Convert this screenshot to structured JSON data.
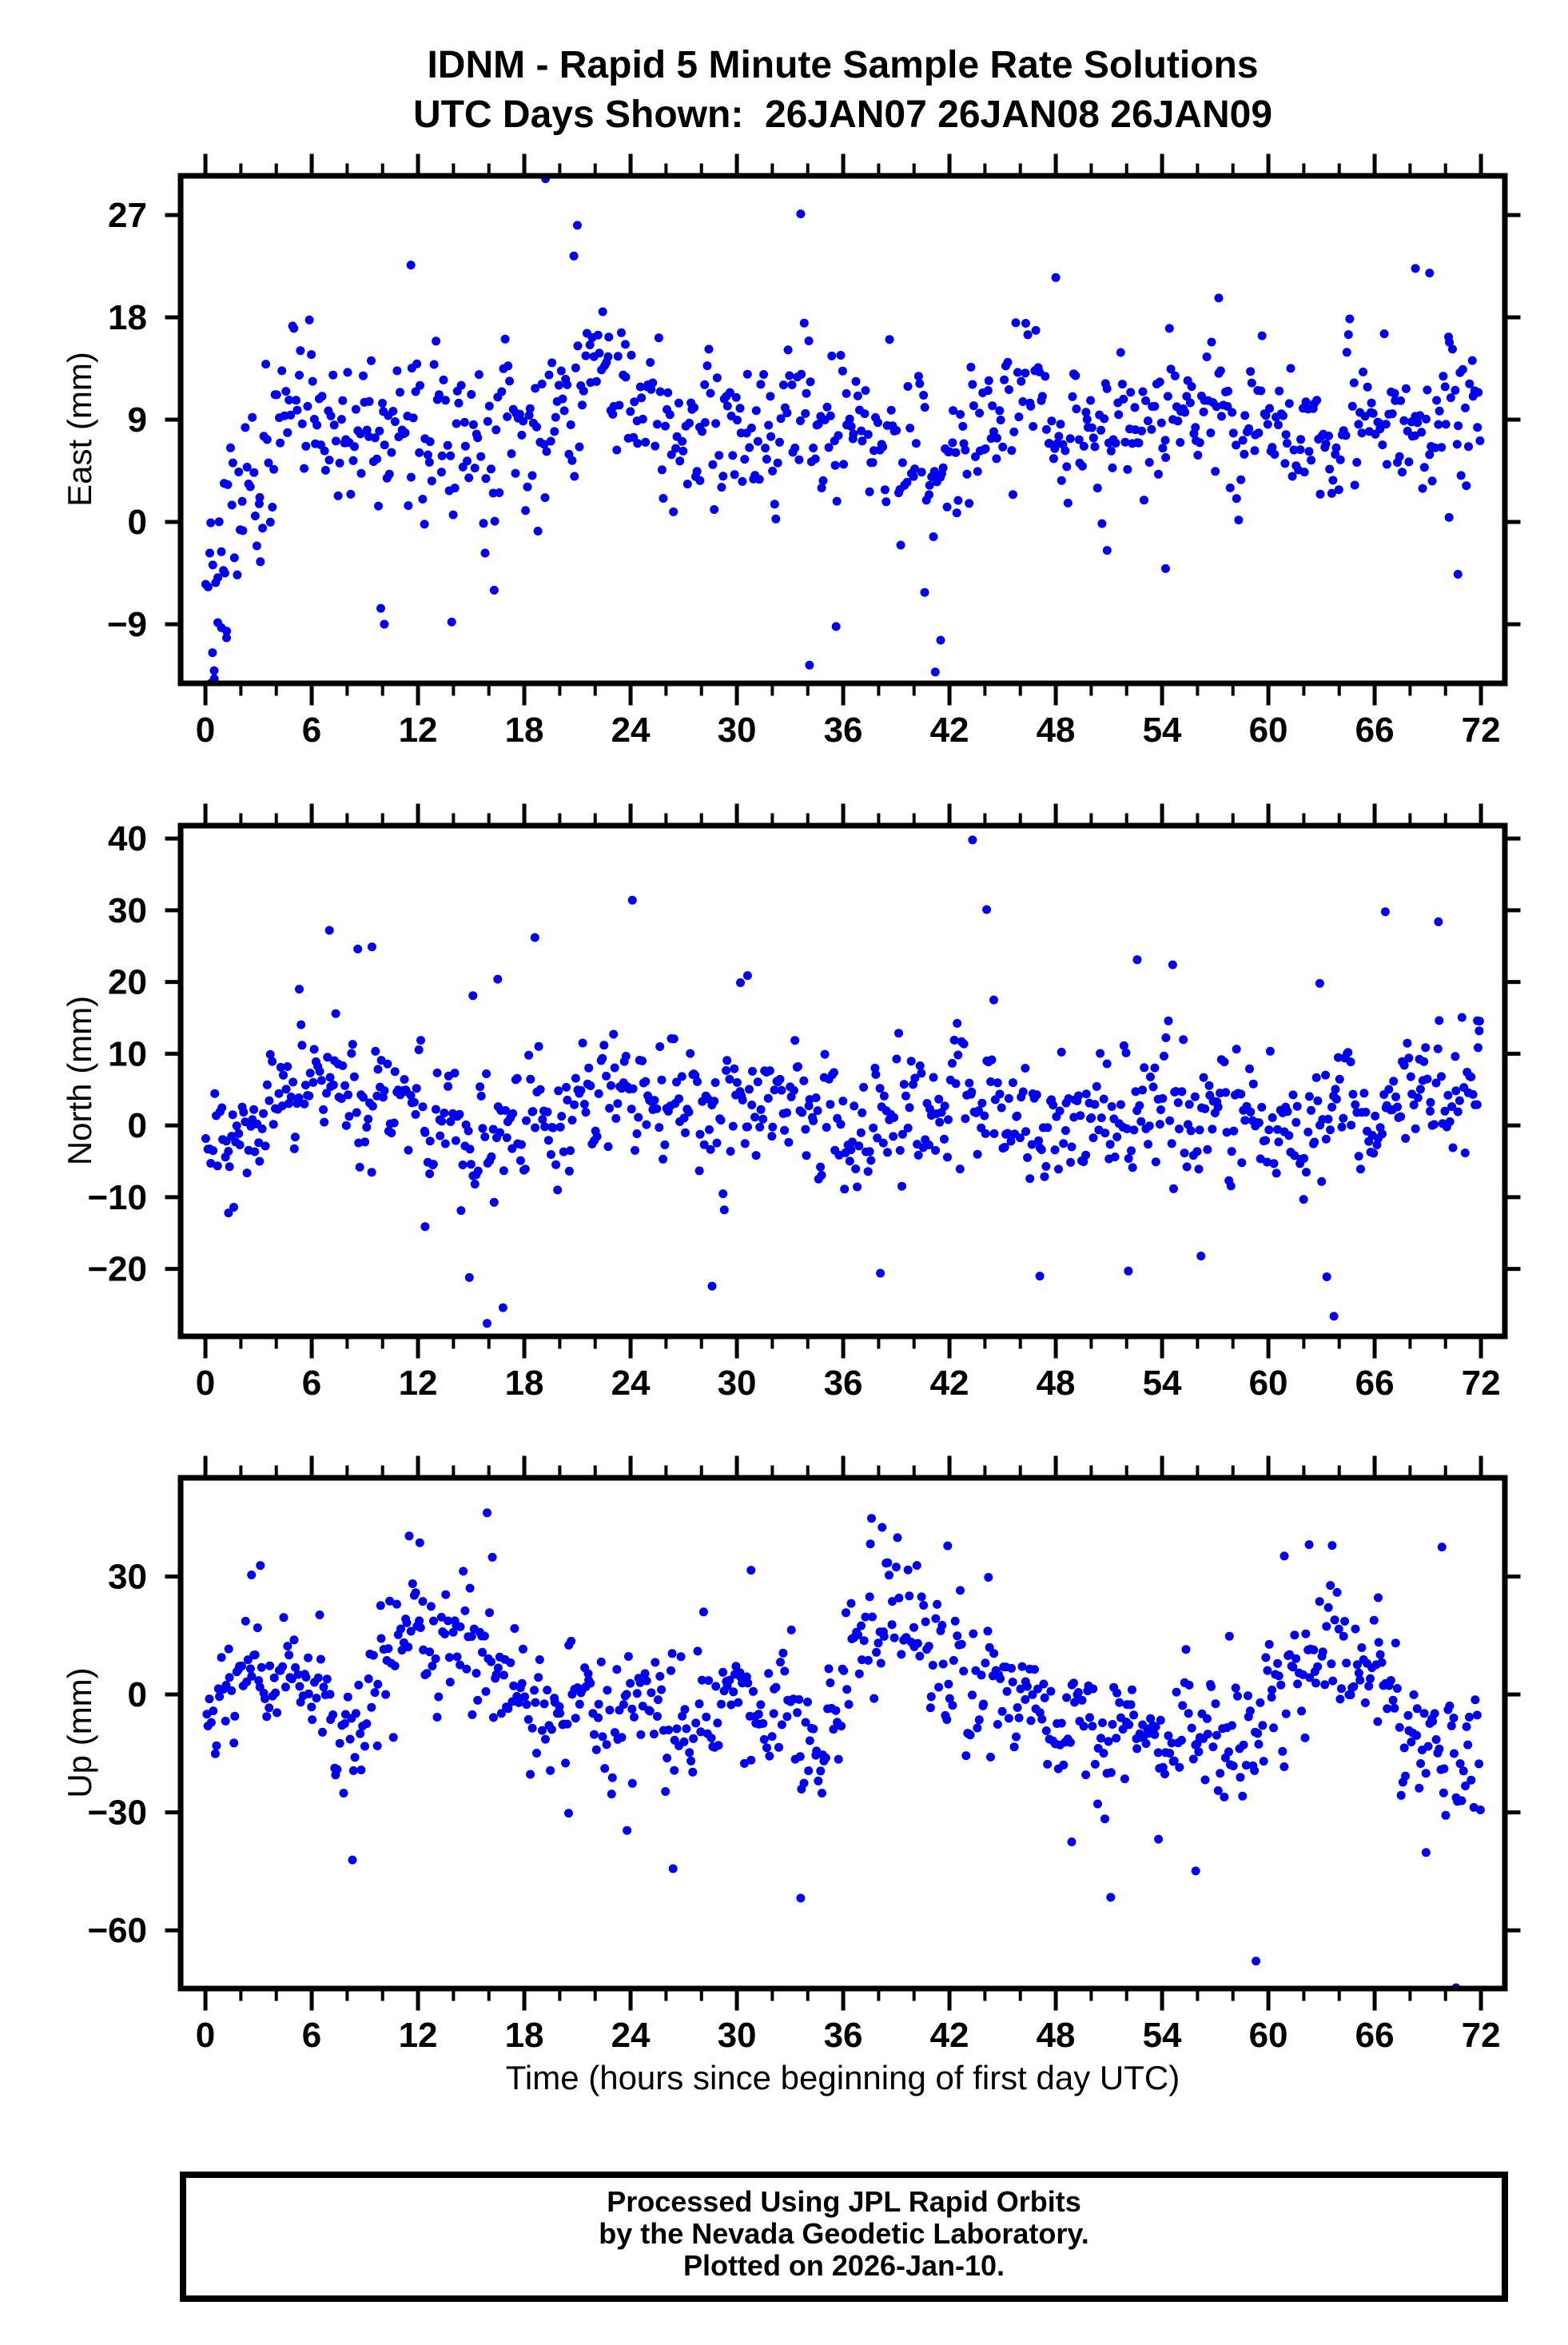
{
  "page": {
    "background": "#ffffff",
    "frame_color": "#000000"
  },
  "title": {
    "line1": "IDNM - Rapid 5 Minute Sample Rate Solutions",
    "line2": "UTC Days Shown:  26JAN07 26JAN08 26JAN09"
  },
  "station": "IDNM",
  "utc_days_shown": [
    "26JAN07",
    "26JAN08",
    "26JAN09"
  ],
  "xlabel": "Time (hours since beginning of first day UTC)",
  "footer": {
    "line1": "Processed Using JPL Rapid Orbits",
    "line2": "by the Nevada Geodetic Laboratory.",
    "line3": "Plotted on 2026-Jan-10."
  },
  "marker": {
    "shape": "circle",
    "color": "#0000ee",
    "radius": 5.5
  },
  "sample_interval_minutes": 5,
  "chart_data": [
    {
      "type": "scatter",
      "ylabel": "East (mm)",
      "xlim": [
        -1.4,
        73.35
      ],
      "ylim": [
        -14.2,
        30.45
      ],
      "xticks": {
        "major": [
          0,
          6,
          12,
          18,
          24,
          30,
          36,
          42,
          48,
          54,
          60,
          66,
          72
        ],
        "labels": [
          "0",
          "6",
          "12",
          "18",
          "24",
          "30",
          "36",
          "42",
          "48",
          "54",
          "60",
          "66",
          "72"
        ],
        "minor_step": 2
      },
      "yticks": [
        {
          "v": 27,
          "label": "27"
        },
        {
          "v": 18,
          "label": "18"
        },
        {
          "v": 9,
          "label": "9"
        },
        {
          "v": 0,
          "label": "0"
        },
        {
          "v": -9,
          "label": "−9"
        }
      ],
      "trend_bins": [
        [
          1,
          -2,
          6.5
        ],
        [
          3,
          6,
          4.5
        ],
        [
          5,
          10,
          4.5
        ],
        [
          7,
          9.5,
          4
        ],
        [
          9,
          8.5,
          4.5
        ],
        [
          11,
          9,
          5
        ],
        [
          13,
          8,
          4.5
        ],
        [
          15,
          6.5,
          5
        ],
        [
          17,
          7.5,
          5.5
        ],
        [
          19,
          10,
          5.5
        ],
        [
          21,
          12,
          5
        ],
        [
          23,
          10.5,
          4.5
        ],
        [
          25,
          10,
          4
        ],
        [
          27,
          9,
          4.5
        ],
        [
          29,
          8,
          4
        ],
        [
          31,
          8,
          4.5
        ],
        [
          33,
          8.5,
          5
        ],
        [
          35,
          7.5,
          5
        ],
        [
          37,
          8,
          4
        ],
        [
          39,
          7,
          4.5
        ],
        [
          41,
          5,
          6
        ],
        [
          43,
          8.5,
          4
        ],
        [
          45,
          9,
          4.5
        ],
        [
          47,
          9.5,
          4.5
        ],
        [
          49,
          9,
          4
        ],
        [
          51,
          8,
          4.5
        ],
        [
          53,
          8.5,
          4.5
        ],
        [
          55,
          10,
          4
        ],
        [
          57,
          10.5,
          4.5
        ],
        [
          59,
          9.5,
          4.5
        ],
        [
          61,
          9,
          4
        ],
        [
          63,
          7.5,
          4.5
        ],
        [
          65,
          7.5,
          4.5
        ],
        [
          67,
          10,
          4.5
        ],
        [
          69,
          11,
          4.5
        ],
        [
          71,
          9.5,
          5
        ]
      ],
      "outliers": [
        [
          0.3,
          -14.2
        ],
        [
          0.5,
          -13.8
        ],
        [
          0.4,
          -11.5
        ],
        [
          0.9,
          -9.3
        ],
        [
          1.2,
          -9.6
        ],
        [
          0.7,
          -4.9
        ],
        [
          1.1,
          -4.5
        ],
        [
          3.1,
          -3.5
        ],
        [
          19.2,
          30.2
        ],
        [
          21.0,
          26.1
        ],
        [
          20.8,
          23.4
        ],
        [
          11.6,
          22.6
        ],
        [
          33.6,
          27.1
        ],
        [
          34.1,
          -12.6
        ],
        [
          35.6,
          -9.2
        ],
        [
          41.2,
          -13.2
        ],
        [
          40.6,
          -6.2
        ],
        [
          41.5,
          -10.4
        ],
        [
          13.9,
          -8.8
        ],
        [
          16.3,
          -6.0
        ],
        [
          9.9,
          -7.6
        ],
        [
          10.1,
          -9.0
        ],
        [
          48.0,
          21.5
        ],
        [
          57.2,
          19.7
        ],
        [
          68.3,
          22.3
        ],
        [
          69.1,
          21.9
        ],
        [
          70.7,
          -4.6
        ],
        [
          54.2,
          -4.1
        ],
        [
          70.2,
          0.4
        ],
        [
          50.9,
          -2.5
        ]
      ]
    },
    {
      "type": "scatter",
      "ylabel": "North (mm)",
      "xlim": [
        -1.4,
        73.35
      ],
      "ylim": [
        -29.4,
        41.8
      ],
      "xticks": {
        "major": [
          0,
          6,
          12,
          18,
          24,
          30,
          36,
          42,
          48,
          54,
          60,
          66,
          72
        ],
        "labels": [
          "0",
          "6",
          "12",
          "18",
          "24",
          "30",
          "36",
          "42",
          "48",
          "54",
          "60",
          "66",
          "72"
        ],
        "minor_step": 2
      },
      "yticks": [
        {
          "v": 40,
          "label": "40"
        },
        {
          "v": 30,
          "label": "30"
        },
        {
          "v": 20,
          "label": "20"
        },
        {
          "v": 10,
          "label": "10"
        },
        {
          "v": 0,
          "label": "0"
        },
        {
          "v": -10,
          "label": "−10"
        },
        {
          "v": -20,
          "label": "−20"
        }
      ],
      "trend_bins": [
        [
          1,
          -2,
          4.5
        ],
        [
          3,
          2,
          4.5
        ],
        [
          5,
          5,
          5
        ],
        [
          7,
          6,
          6
        ],
        [
          9,
          4,
          6
        ],
        [
          11,
          2.5,
          5
        ],
        [
          13,
          1,
          5.5
        ],
        [
          15,
          -1,
          7
        ],
        [
          17,
          1,
          6
        ],
        [
          19,
          4,
          5.5
        ],
        [
          21,
          2.5,
          5
        ],
        [
          23,
          3.5,
          6
        ],
        [
          25,
          4,
          5
        ],
        [
          27,
          3,
          5
        ],
        [
          29,
          1.5,
          6
        ],
        [
          31,
          3.5,
          6
        ],
        [
          33,
          2,
          5
        ],
        [
          35,
          0.5,
          5
        ],
        [
          37,
          -0.5,
          6
        ],
        [
          39,
          1,
          5.5
        ],
        [
          41,
          3,
          5.5
        ],
        [
          43,
          4,
          7
        ],
        [
          45,
          3,
          6
        ],
        [
          47,
          0.5,
          6
        ],
        [
          49,
          1,
          5.5
        ],
        [
          51,
          0.5,
          6
        ],
        [
          53,
          2.5,
          6
        ],
        [
          55,
          2,
          6
        ],
        [
          57,
          2,
          5
        ],
        [
          59,
          1.5,
          5
        ],
        [
          61,
          0.5,
          5.5
        ],
        [
          63,
          0,
          7
        ],
        [
          65,
          3.5,
          5.5
        ],
        [
          67,
          4,
          6
        ],
        [
          69,
          5,
          6
        ],
        [
          71,
          7,
          5
        ]
      ],
      "outliers": [
        [
          7.0,
          27.2
        ],
        [
          8.6,
          24.6
        ],
        [
          9.4,
          24.9
        ],
        [
          18.6,
          26.2
        ],
        [
          24.1,
          31.4
        ],
        [
          43.3,
          39.8
        ],
        [
          44.1,
          30.1
        ],
        [
          66.6,
          29.8
        ],
        [
          69.6,
          28.4
        ],
        [
          15.9,
          -27.6
        ],
        [
          16.8,
          -25.4
        ],
        [
          14.9,
          -21.2
        ],
        [
          28.6,
          -22.4
        ],
        [
          38.1,
          -20.6
        ],
        [
          47.1,
          -21.0
        ],
        [
          52.1,
          -20.3
        ],
        [
          63.3,
          -21.1
        ],
        [
          63.7,
          -26.6
        ],
        [
          56.2,
          -18.2
        ],
        [
          12.4,
          -14.1
        ],
        [
          5.3,
          19.0
        ],
        [
          16.5,
          20.4
        ],
        [
          15.1,
          18.1
        ],
        [
          30.6,
          20.9
        ],
        [
          30.2,
          19.9
        ],
        [
          52.6,
          23.1
        ],
        [
          54.6,
          22.4
        ],
        [
          62.9,
          19.8
        ],
        [
          71.8,
          14.6
        ],
        [
          71.9,
          13.2
        ],
        [
          1.3,
          -12.2
        ],
        [
          1.6,
          -11.4
        ],
        [
          44.5,
          17.5
        ]
      ]
    },
    {
      "type": "scatter",
      "ylabel": "Up (mm)",
      "xlim": [
        -1.4,
        73.35
      ],
      "ylim": [
        -74.8,
        55.1
      ],
      "xticks": {
        "major": [
          0,
          6,
          12,
          18,
          24,
          30,
          36,
          42,
          48,
          54,
          60,
          66,
          72
        ],
        "labels": [
          "0",
          "6",
          "12",
          "18",
          "24",
          "30",
          "36",
          "42",
          "48",
          "54",
          "60",
          "66",
          "72"
        ],
        "minor_step": 2
      },
      "yticks": [
        {
          "v": 30,
          "label": "30"
        },
        {
          "v": 0,
          "label": "0"
        },
        {
          "v": -30,
          "label": "−30"
        },
        {
          "v": -60,
          "label": "−60"
        }
      ],
      "trend_bins": [
        [
          1,
          -3,
          7
        ],
        [
          3,
          8,
          10
        ],
        [
          5,
          6,
          9
        ],
        [
          7,
          0,
          12
        ],
        [
          9,
          -6,
          12
        ],
        [
          11,
          14,
          10
        ],
        [
          13,
          12,
          11
        ],
        [
          15,
          14,
          12
        ],
        [
          17,
          6,
          11
        ],
        [
          19,
          -2,
          10
        ],
        [
          21,
          -5,
          10
        ],
        [
          23,
          -10,
          11
        ],
        [
          25,
          -4,
          11
        ],
        [
          27,
          -6,
          13
        ],
        [
          29,
          6,
          10
        ],
        [
          31,
          0,
          12
        ],
        [
          33,
          -4,
          13
        ],
        [
          35,
          -10,
          9
        ],
        [
          37,
          16,
          13
        ],
        [
          39,
          22,
          10
        ],
        [
          41,
          12,
          11
        ],
        [
          43,
          3,
          11
        ],
        [
          45,
          -2,
          10
        ],
        [
          47,
          -6,
          9
        ],
        [
          49,
          -8,
          10
        ],
        [
          51,
          -10,
          11
        ],
        [
          53,
          -12,
          10
        ],
        [
          55,
          -12,
          11
        ],
        [
          57,
          -9,
          10
        ],
        [
          59,
          -8,
          12
        ],
        [
          61,
          8,
          11
        ],
        [
          63,
          10,
          12
        ],
        [
          65,
          8,
          11
        ],
        [
          67,
          -4,
          10
        ],
        [
          69,
          -12,
          12
        ],
        [
          71,
          -18,
          11
        ]
      ],
      "outliers": [
        [
          15.9,
          46.2
        ],
        [
          37.6,
          44.8
        ],
        [
          38.2,
          42.5
        ],
        [
          11.5,
          40.3
        ],
        [
          12.1,
          38.6
        ],
        [
          62.3,
          38.1
        ],
        [
          63.6,
          37.9
        ],
        [
          69.8,
          37.5
        ],
        [
          60.9,
          35.2
        ],
        [
          8.3,
          -42.1
        ],
        [
          26.4,
          -44.3
        ],
        [
          33.6,
          -51.8
        ],
        [
          51.1,
          -51.6
        ],
        [
          55.9,
          -44.9
        ],
        [
          59.3,
          -67.8
        ],
        [
          70.6,
          -74.6
        ],
        [
          48.9,
          -37.5
        ],
        [
          53.8,
          -36.8
        ],
        [
          68.9,
          -40.2
        ],
        [
          23.8,
          -34.6
        ],
        [
          20.5,
          -30.2
        ],
        [
          34.8,
          -25.1
        ],
        [
          3.1,
          32.8
        ],
        [
          2.6,
          30.4
        ],
        [
          16.2,
          34.9
        ],
        [
          30.8,
          31.6
        ],
        [
          44.2,
          29.8
        ],
        [
          57.8,
          14.8
        ],
        [
          66.2,
          24.6
        ],
        [
          41.9,
          37.8
        ]
      ]
    }
  ]
}
